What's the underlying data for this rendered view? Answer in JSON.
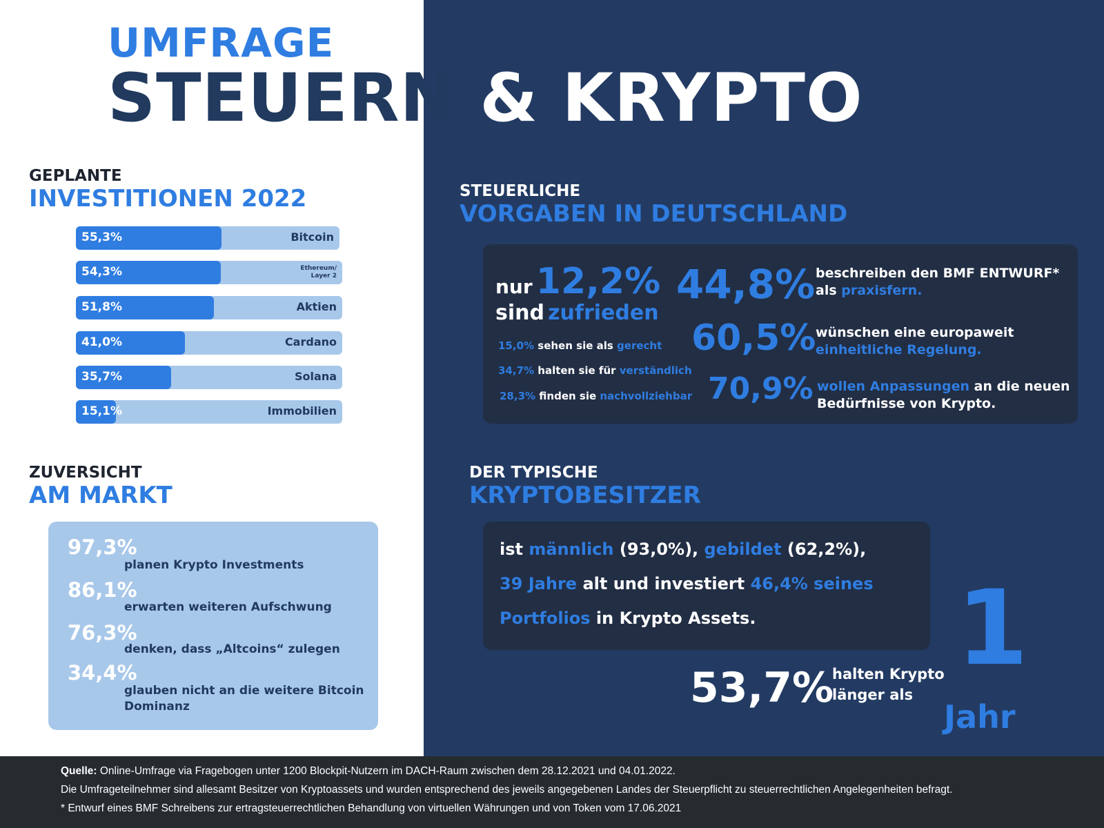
{
  "header": {
    "umfrage": "UMFRAGE",
    "title_part1": "STEUERN",
    "title_part2": "& KRYPTO"
  },
  "investitionen": {
    "title_top": "GEPLANTE",
    "title_bottom": "INVESTITIONEN 2022",
    "items": [
      {
        "value": "55,3%",
        "label": "Bitcoin",
        "fraction": 0.553
      },
      {
        "value": "54,3%",
        "label_line1": "Ethereum/",
        "label_line2": "Layer 2",
        "fraction": 0.543
      },
      {
        "value": "51,8%",
        "label": "Aktien",
        "fraction": 0.518
      },
      {
        "value": "41,0%",
        "label": "Cardano",
        "fraction": 0.41
      },
      {
        "value": "35,7%",
        "label": "Solana",
        "fraction": 0.357
      },
      {
        "value": "15,1%",
        "label": "Immobilien",
        "fraction": 0.151
      }
    ]
  },
  "zuversicht": {
    "title_top": "ZUVERSICHT",
    "title_bottom": "AM MARKT",
    "items": [
      {
        "value": "97,3%",
        "text": "planen Krypto Investments"
      },
      {
        "value": "86,1%",
        "text": "erwarten weiteren Aufschwung"
      },
      {
        "value": "76,3%",
        "text": "denken, dass „Altcoins“ zulegen"
      },
      {
        "value": "34,4%",
        "text": "glauben nicht an die weitere Bitcoin Dominanz"
      }
    ]
  },
  "vorgaben": {
    "title_top": "STEUERLICHE",
    "title_bottom": "VORGABEN IN DEUTSCHLAND",
    "nur": "nur",
    "nur_value": "12,2%",
    "sind": "sind",
    "zufrieden": "zufrieden",
    "small": [
      {
        "value": "15,0%",
        "text": "sehen sie als",
        "highlight": "gerecht"
      },
      {
        "value": "34,7%",
        "text": "halten sie für",
        "highlight": "verständlich"
      },
      {
        "value": "28,3%",
        "text": "finden sie",
        "highlight": "nachvollziehbar"
      }
    ],
    "big": [
      {
        "value": "44,8%",
        "line1": "beschreiben den BMF ENTWURF*",
        "line2_plain": "als",
        "line2_highlight": "praxisfern."
      },
      {
        "value": "60,5%",
        "line1": "wünschen eine europaweit",
        "line2_highlight": "einheitliche Regelung."
      },
      {
        "value": "70,9%",
        "line1_highlight": "wollen Anpassungen",
        "line1_plain": "an die neuen",
        "line2": "Bedürfnisse von Krypto."
      }
    ]
  },
  "besitzer": {
    "title_top": "DER TYPISCHE",
    "title_bottom": "KRYPTOBESITZER",
    "l1_a": "ist",
    "l1_b": "männlich",
    "l1_c": "(93,0%),",
    "l1_d": "gebildet",
    "l1_e": "(62,2%),",
    "l2_a": "39 Jahre",
    "l2_b": "alt und investiert",
    "l2_c": "46,4% seines",
    "l3_a": "Portfolios",
    "l3_b": "in Krypto Assets.",
    "hold_value": "53,7%",
    "hold_line1": "halten Krypto",
    "hold_line2": "länger als",
    "one": "1",
    "jahr": "Jahr"
  },
  "footer": {
    "quelle_label": "Quelle:",
    "quelle_text": "Online-Umfrage via Fragebogen unter 1200 Blockpit-Nutzern im DACH-Raum zwischen dem 28.12.2021 und 04.01.2022.",
    "line2": "Die Umfrageteilnehmer sind allesamt Besitzer von Kryptoassets und wurden entsprechend des jeweils angegebenen Landes der Steuerpflicht zu steuerrechtlichen Angelegenheiten befragt.",
    "line3": "* Entwurf eines BMF Schreibens zur ertragsteuerrechtlichen Behandlung von virtuellen Währungen und von Token vom 17.06.2021"
  },
  "colors": {
    "accent": "#2f7de1",
    "navy": "#233b63",
    "light_blue": "#a8c8ea",
    "dark_box": "#222e44",
    "footer": "#262b30"
  }
}
